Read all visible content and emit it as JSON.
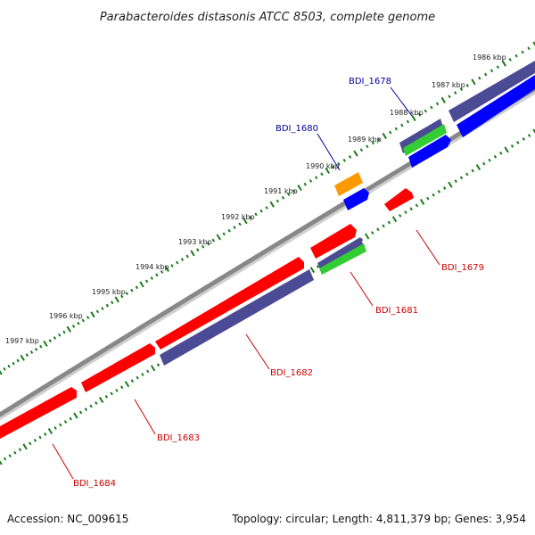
{
  "title": "Parabacteroides distasonis ATCC 8503, complete genome",
  "footer": {
    "accession": "Accession: NC_009615",
    "topology": "Topology: circular; Length: 4,811,379 bp; Genes: 3,954"
  },
  "colors": {
    "backbone": "#888888",
    "ticks": "#1a7a1a",
    "red": "#ff0000",
    "navy": "#4b4b95",
    "blue": "#0000ff",
    "green": "#33cc33",
    "orange": "#ff9900",
    "label_red": "#cc0000",
    "label_blue": "#000099"
  },
  "kbp_labels": [
    "1986 kbp",
    "1987 kbp",
    "1988 kbp",
    "1989 kbp",
    "1990 kbp",
    "1991 kbp",
    "1992 kbp",
    "1993 kbp",
    "1994 kbp",
    "1995 kbp",
    "1996 kbp",
    "1997 kbp"
  ],
  "gene_labels": [
    {
      "text": "BDI_1678",
      "color": "blue"
    },
    {
      "text": "BDI_1680",
      "color": "blue"
    },
    {
      "text": "BDI_1679",
      "color": "red"
    },
    {
      "text": "BDI_1681",
      "color": "red"
    },
    {
      "text": "BDI_1682",
      "color": "red"
    },
    {
      "text": "BDI_1683",
      "color": "red"
    },
    {
      "text": "BDI_1684",
      "color": "red"
    }
  ]
}
